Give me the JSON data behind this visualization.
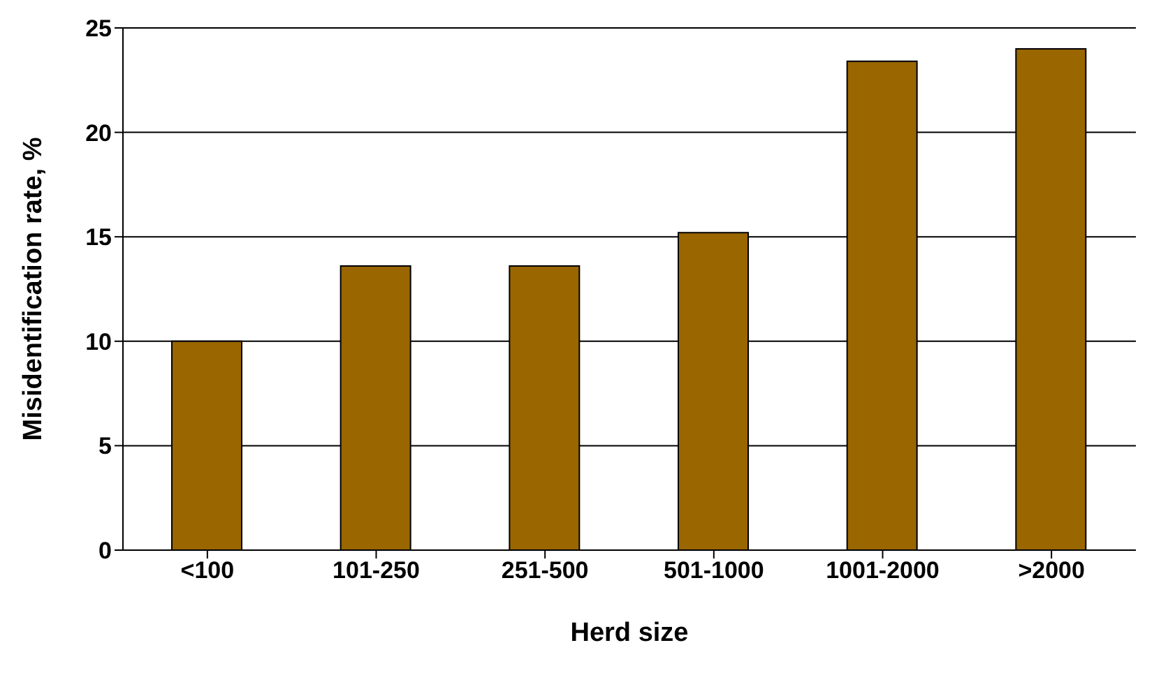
{
  "chart_data": {
    "type": "bar",
    "xlabel": "Herd size",
    "ylabel": "Misidentification rate, %",
    "categories": [
      "<100",
      "101-250",
      "251-500",
      "501-1000",
      "1001-2000",
      ">2000"
    ],
    "values": [
      10,
      13.6,
      13.6,
      15.2,
      23.4,
      24
    ],
    "color": "#996600",
    "ylim": [
      0,
      25
    ],
    "yticks": [
      0,
      5,
      10,
      15,
      20,
      25
    ],
    "grid": "y"
  }
}
